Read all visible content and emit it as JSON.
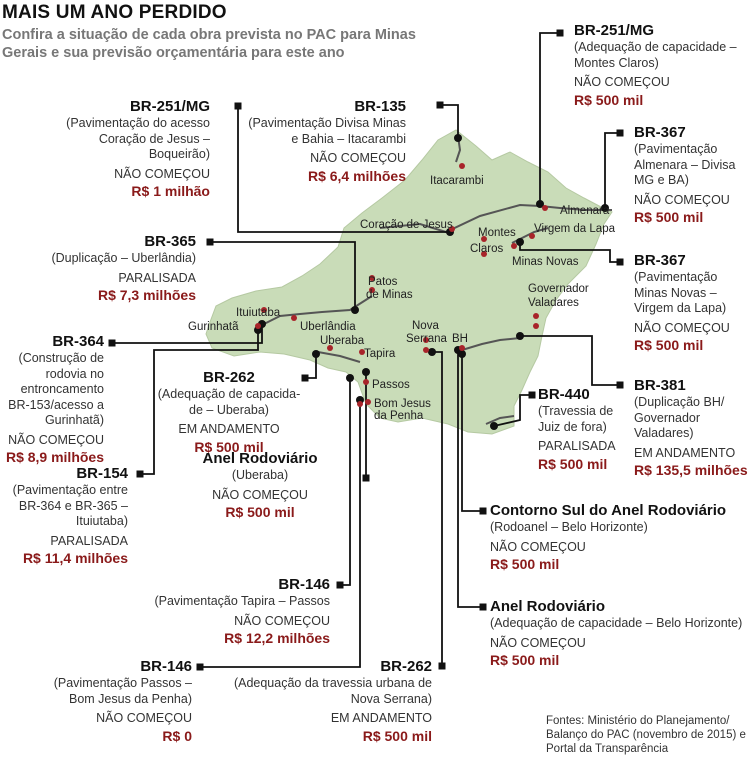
{
  "header": {
    "title": "MAIS UM ANO PERDIDO",
    "subtitle": "Confira a situação de cada obra prevista no PAC para Minas Gerais e sua previsão orçamentária para este ano"
  },
  "colors": {
    "map_fill": "#c9dcb8",
    "road": "#555555",
    "leader": "#111111",
    "city_dot": "#a8242a",
    "cost": "#8a1a1a"
  },
  "cities": [
    "Itacarambi",
    "Almenara",
    "Coração de Jesus",
    "Montes",
    "Claros",
    "Virgem da Lapa",
    "Minas Novas",
    "Governador",
    "Valadares",
    "Patos",
    "de Minas",
    "Ituiutaba",
    "Gurinhatã",
    "Uberlândia",
    "Uberaba",
    "Tapira",
    "Nova",
    "Serrana",
    "BH",
    "Passos",
    "Bom Jesus",
    "da Penha"
  ],
  "projects": [
    {
      "road": "BR-251/MG",
      "desc": "(Pavimentação do acesso Coração de Jesus – Boqueirão)",
      "status": "NÃO COMEÇOU",
      "cost": "R$ 1 milhão"
    },
    {
      "road": "BR-135",
      "desc": "(Pavimentação Divisa Minas e Bahia – Itacarambi",
      "status": "NÃO COMEÇOU",
      "cost": "R$ 6,4 milhões"
    },
    {
      "road": "BR-251/MG",
      "desc": "(Adequação de capacidade – Montes Claros)",
      "status": "NÃO COMEÇOU",
      "cost": "R$ 500 mil"
    },
    {
      "road": "BR-367",
      "desc": "(Pavimentação Almenara – Divisa MG e BA)",
      "status": "NÃO COMEÇOU",
      "cost": "R$ 500 mil"
    },
    {
      "road": "BR-365",
      "desc": "(Duplicação – Uberlândia)",
      "status": "PARALISADA",
      "cost": "R$ 7,3 milhões"
    },
    {
      "road": "BR-367",
      "desc": "(Pavimentação Minas Novas – Virgem da Lapa)",
      "status": "NÃO COMEÇOU",
      "cost": "R$ 500 mil"
    },
    {
      "road": "BR-364",
      "desc": "(Construção de rodovia no entroncamento BR-153/acesso a Gurinhatã)",
      "status": "NÃO COMEÇOU",
      "cost": "R$ 8,9 milhões"
    },
    {
      "road": "BR-262",
      "desc": "(Adequação de capacida-de – Uberaba)",
      "status": "EM ANDAMENTO",
      "cost": "R$ 500 mil"
    },
    {
      "road": "BR-440",
      "desc": "(Travessia de Juiz de fora)",
      "status": "PARALISADA",
      "cost": "R$ 500 mil"
    },
    {
      "road": "BR-381",
      "desc": "(Duplicação BH/ Governador Valadares)",
      "status": "EM ANDAMENTO",
      "cost": "R$ 135,5 milhões"
    },
    {
      "road": "Anel Rodoviário",
      "desc": "(Uberaba)",
      "status": "NÃO COMEÇOU",
      "cost": "R$ 500 mil"
    },
    {
      "road": "BR-154",
      "desc": "(Pavimentação entre BR-364 e BR-365 – Ituiutaba)",
      "status": "PARALISADA",
      "cost": "R$ 11,4 milhões"
    },
    {
      "road": "Contorno Sul do Anel Rodoviário",
      "desc": "(Rodoanel – Belo Horizonte)",
      "status": "NÃO COMEÇOU",
      "cost": "R$ 500 mil"
    },
    {
      "road": "BR-146",
      "desc": "(Pavimentação Tapira – Passos",
      "status": "NÃO COMEÇOU",
      "cost": "R$ 12,2 milhões"
    },
    {
      "road": "Anel Rodoviário",
      "desc": "(Adequação de capacidade – Belo Horizonte)",
      "status": "NÃO COMEÇOU",
      "cost": "R$ 500 mil"
    },
    {
      "road": "BR-146",
      "desc": "(Pavimentação Passos – Bom Jesus da Penha)",
      "status": "NÃO COMEÇOU",
      "cost": "R$ 0"
    },
    {
      "road": "BR-262",
      "desc": "(Adequação da travessia urbana de Nova Serrana)",
      "status": "EM ANDAMENTO",
      "cost": "R$ 500 mil"
    }
  ],
  "sources": "Fontes: Ministério do Planejamento/ Balanço do PAC (novembro de 2015) e Portal da Transparência"
}
